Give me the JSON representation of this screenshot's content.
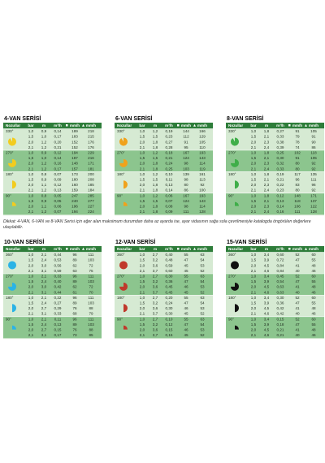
{
  "headers": [
    "Nozullar",
    "bar",
    "m",
    "m³/h",
    "mm/h",
    "mm/h"
  ],
  "note": "Dikkat: 4-VAN, 6-VAN ve 8-VAN Serisi için eğer alan maksimum durumdan daha az ayarda ise, ayar vidasının sağa sola çevrilmesiyle katalogda öngörülen değerlere ulaşılabilir.",
  "tables": [
    {
      "title": "4-VAN SERİSİ",
      "groups": [
        {
          "angle": "330°",
          "rows": [
            [
              "1,0",
              "0,9",
              "0,14",
              "189",
              "218"
            ],
            [
              "1,5",
              "1,0",
              "0,17",
              "183",
              "215"
            ],
            [
              "2,0",
              "1,2",
              "0,20",
              "152",
              "176"
            ],
            [
              "2,1",
              "1,2",
              "0,21",
              "152",
              "176"
            ]
          ]
        },
        {
          "angle": "270°",
          "rows": [
            [
              "1,0",
              "0,9",
              "0,12",
              "194",
              "229"
            ],
            [
              "1,5",
              "1,0",
              "0,14",
              "187",
              "216"
            ],
            [
              "2,0",
              "1,2",
              "0,16",
              "148",
              "171"
            ],
            [
              "2,1",
              "1,2",
              "0,17",
              "157",
              "181"
            ]
          ]
        },
        {
          "angle": "180°",
          "rows": [
            [
              "1,0",
              "0,8",
              "0,07",
              "173",
              "200"
            ],
            [
              "1,5",
              "0,9",
              "0,09",
              "180",
              "208"
            ],
            [
              "2,0",
              "1,1",
              "0,12",
              "160",
              "185"
            ],
            [
              "2,1",
              "1,2",
              "0,13",
              "159",
              "184"
            ]
          ]
        },
        {
          "angle": "90°",
          "rows": [
            [
              "1,0",
              "0,8",
              "0,05",
              "247",
              "285"
            ],
            [
              "1,5",
              "0,9",
              "0,05",
              "240",
              "277"
            ],
            [
              "2,0",
              "1,1",
              "0,06",
              "196",
              "227"
            ],
            [
              "2,1",
              "1,2",
              "0,07",
              "194",
              "224"
            ]
          ]
        }
      ]
    },
    {
      "title": "6-VAN SERİSİ",
      "groups": [
        {
          "angle": "330°",
          "rows": [
            [
              "1,0",
              "1,2",
              "0,19",
              "144",
              "166"
            ],
            [
              "1,5",
              "1,5",
              "0,23",
              "112",
              "129"
            ],
            [
              "2,0",
              "1,8",
              "0,27",
              "91",
              "105"
            ],
            [
              "2,1",
              "1,8",
              "0,28",
              "95",
              "110"
            ]
          ]
        },
        {
          "angle": "270°",
          "rows": [
            [
              "1,0",
              "1,2",
              "0,18",
              "167",
              "193"
            ],
            [
              "1,5",
              "1,5",
              "0,21",
              "124",
              "143"
            ],
            [
              "2,0",
              "1,8",
              "0,24",
              "98",
              "114"
            ],
            [
              "2,1",
              "1,8",
              "0,25",
              "103",
              "119"
            ]
          ]
        },
        {
          "angle": "180°",
          "rows": [
            [
              "1,0",
              "1,2",
              "0,10",
              "139",
              "161"
            ],
            [
              "1,5",
              "1,5",
              "0,11",
              "98",
              "113"
            ],
            [
              "2,0",
              "1,8",
              "0,13",
              "80",
              "92"
            ],
            [
              "2,1",
              "1,8",
              "0,14",
              "86",
              "100"
            ]
          ]
        },
        {
          "angle": "90°",
          "rows": [
            [
              "1,0",
              "1,2",
              "0,06",
              "167",
              "193"
            ],
            [
              "1,5",
              "1,5",
              "0,07",
              "124",
              "143"
            ],
            [
              "2,0",
              "1,8",
              "0,08",
              "98",
              "114"
            ],
            [
              "2,1",
              "1,8",
              "0,09",
              "111",
              "128"
            ]
          ]
        }
      ]
    },
    {
      "title": "8-VAN SERİSİ",
      "groups": [
        {
          "angle": "330°",
          "rows": [
            [
              "1,0",
              "1,8",
              "0,27",
              "91",
              "105"
            ],
            [
              "1,5",
              "2,1",
              "0,33",
              "79",
              "91"
            ],
            [
              "2,0",
              "2,3",
              "0,38",
              "78",
              "90"
            ],
            [
              "2,1",
              "2,4",
              "0,39",
              "74",
              "86"
            ]
          ]
        },
        {
          "angle": "270°",
          "rows": [
            [
              "1,0",
              "1,8",
              "0,25",
              "102",
              "118"
            ],
            [
              "1,5",
              "2,1",
              "0,30",
              "91",
              "105"
            ],
            [
              "2,0",
              "2,3",
              "0,32",
              "80",
              "92"
            ],
            [
              "2,1",
              "2,4",
              "0,33",
              "80",
              "92"
            ]
          ]
        },
        {
          "angle": "180°",
          "rows": [
            [
              "1,0",
              "1,8",
              "0,19",
              "117",
              "135"
            ],
            [
              "1,5",
              "2,1",
              "0,21",
              "96",
              "111"
            ],
            [
              "2,0",
              "2,3",
              "0,22",
              "83",
              "96"
            ],
            [
              "2,1",
              "2,4",
              "0,23",
              "80",
              "92"
            ]
          ]
        },
        {
          "angle": "90°",
          "rows": [
            [
              "1,0",
              "1,8",
              "0,12",
              "148",
              "171"
            ],
            [
              "1,5",
              "2,1",
              "0,13",
              "118",
              "137"
            ],
            [
              "2,0",
              "2,3",
              "0,14",
              "106",
              "122"
            ],
            [
              "2,1",
              "2,4",
              "0,16",
              "111",
              "128"
            ]
          ]
        }
      ]
    },
    {
      "title": "10-VAN SERİSİ",
      "groups": [
        {
          "angle": "360°",
          "rows": [
            [
              "1,0",
              "2,1",
              "0,44",
              "96",
              "111"
            ],
            [
              "1,5",
              "2,4",
              "0,53",
              "89",
              "103"
            ],
            [
              "2,0",
              "3,0",
              "0,56",
              "62",
              "72"
            ],
            [
              "2,1",
              "3,1",
              "0,59",
              "63",
              "75"
            ]
          ]
        },
        {
          "angle": "270°",
          "rows": [
            [
              "1,0",
              "2,1",
              "0,33",
              "96",
              "111"
            ],
            [
              "1,5",
              "2,4",
              "0,40",
              "89",
              "103"
            ],
            [
              "2,0",
              "3,0",
              "0,42",
              "62",
              "72"
            ],
            [
              "2,1",
              "3,1",
              "0,44",
              "61",
              "70"
            ]
          ]
        },
        {
          "angle": "180°",
          "rows": [
            [
              "1,0",
              "2,1",
              "0,22",
              "96",
              "111"
            ],
            [
              "1,5",
              "2,4",
              "0,27",
              "89",
              "103"
            ],
            [
              "2,0",
              "2,7",
              "0,29",
              "76",
              "88"
            ],
            [
              "2,1",
              "3,1",
              "0,33",
              "68",
              "79"
            ]
          ]
        },
        {
          "angle": "90°",
          "rows": [
            [
              "1,0",
              "2,1",
              "0,11",
              "96",
              "111"
            ],
            [
              "1,5",
              "2,4",
              "0,13",
              "89",
              "103"
            ],
            [
              "2,0",
              "2,7",
              "0,15",
              "76",
              "88"
            ],
            [
              "2,1",
              "3,1",
              "0,17",
              "73",
              "85"
            ]
          ]
        }
      ]
    },
    {
      "title": "12-VAN SERİSİ",
      "groups": [
        {
          "angle": "360°",
          "rows": [
            [
              "1,0",
              "2,7",
              "0,40",
              "55",
              "63"
            ],
            [
              "1,5",
              "3,2",
              "0,48",
              "47",
              "54"
            ],
            [
              "2,0",
              "3,6",
              "0,59",
              "45",
              "53"
            ],
            [
              "2,1",
              "3,7",
              "0,60",
              "45",
              "52"
            ]
          ]
        },
        {
          "angle": "270°",
          "rows": [
            [
              "1,0",
              "2,7",
              "0,30",
              "55",
              "63"
            ],
            [
              "1,5",
              "3,2",
              "0,36",
              "47",
              "54"
            ],
            [
              "2,0",
              "3,6",
              "0,45",
              "46",
              "53"
            ],
            [
              "2,1",
              "3,7",
              "0,45",
              "45",
              "52"
            ]
          ]
        },
        {
          "angle": "180°",
          "rows": [
            [
              "1,0",
              "2,7",
              "0,20",
              "55",
              "63"
            ],
            [
              "1,5",
              "3,2",
              "0,24",
              "47",
              "54"
            ],
            [
              "2,0",
              "3,6",
              "0,30",
              "46",
              "53"
            ],
            [
              "2,1",
              "3,7",
              "0,30",
              "45",
              "52"
            ]
          ]
        },
        {
          "angle": "90°",
          "rows": [
            [
              "1,0",
              "2,7",
              "0,10",
              "55",
              "63"
            ],
            [
              "1,5",
              "3,2",
              "0,12",
              "47",
              "54"
            ],
            [
              "2,0",
              "3,6",
              "0,15",
              "46",
              "53"
            ],
            [
              "2,1",
              "3,7",
              "0,15",
              "45",
              "52"
            ]
          ]
        }
      ]
    },
    {
      "title": "15-VAN SERİSİ",
      "groups": [
        {
          "angle": "360°",
          "rows": [
            [
              "1,0",
              "3,4",
              "0,60",
              "52",
              "60"
            ],
            [
              "1,5",
              "3,9",
              "0,72",
              "47",
              "55"
            ],
            [
              "2,0",
              "4,5",
              "0,84",
              "41",
              "48"
            ],
            [
              "2,1",
              "4,6",
              "0,84",
              "40",
              "46"
            ]
          ]
        },
        {
          "angle": "270°",
          "rows": [
            [
              "1,0",
              "3,4",
              "0,45",
              "52",
              "60"
            ],
            [
              "1,5",
              "3,9",
              "0,54",
              "47",
              "55"
            ],
            [
              "2,0",
              "4,5",
              "0,63",
              "41",
              "48"
            ],
            [
              "2,1",
              "4,6",
              "0,63",
              "40",
              "46"
            ]
          ]
        },
        {
          "angle": "180°",
          "rows": [
            [
              "1,0",
              "3,4",
              "0,30",
              "52",
              "60"
            ],
            [
              "1,5",
              "3,9",
              "0,36",
              "47",
              "55"
            ],
            [
              "2,0",
              "4,5",
              "0,42",
              "41",
              "48"
            ],
            [
              "2,1",
              "4,6",
              "0,42",
              "40",
              "46"
            ]
          ]
        },
        {
          "angle": "90°",
          "rows": [
            [
              "1,0",
              "3,4",
              "0,15",
              "52",
              "60"
            ],
            [
              "1,5",
              "3,9",
              "0,18",
              "47",
              "55"
            ],
            [
              "2,0",
              "4,5",
              "0,21",
              "41",
              "48"
            ],
            [
              "2,1",
              "4,6",
              "0,21",
              "40",
              "46"
            ]
          ]
        }
      ]
    }
  ]
}
